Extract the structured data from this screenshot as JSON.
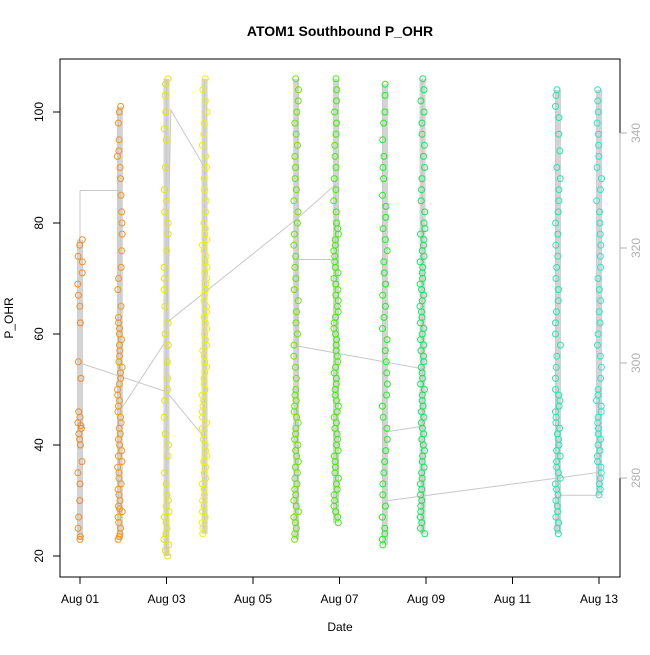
{
  "chart_data": {
    "type": "scatter",
    "title": "ATOM1 Southbound P_OHR",
    "xlabel": "Date",
    "ylabel": "P_OHR",
    "x_ticks": [
      "Aug 01",
      "Aug 03",
      "Aug 05",
      "Aug 07",
      "Aug 09",
      "Aug 11",
      "Aug 13"
    ],
    "xlim": [
      "Aug 01",
      "Aug 13"
    ],
    "ylim": [
      20,
      110
    ],
    "y_ticks": [
      20,
      40,
      60,
      80,
      100
    ],
    "secondary_y_ticks": [
      280,
      300,
      320,
      340
    ],
    "secondary_ylim": [
      263,
      353
    ],
    "grid": false,
    "series": [
      {
        "date": "Aug 01",
        "color": "#f08c28",
        "p_ohr_min": 23,
        "p_ohr_max": 77,
        "points": [
          23,
          23.5,
          25,
          27,
          30,
          33,
          35,
          37,
          40,
          41,
          42,
          43,
          43.5,
          44,
          45,
          46,
          52,
          55,
          62,
          65,
          67,
          69,
          71,
          73,
          74,
          76,
          77
        ]
      },
      {
        "date": "Aug 01 pm",
        "color": "#f0961e",
        "p_ohr_min": 23,
        "p_ohr_max": 101,
        "points": [
          23,
          23.5,
          24,
          25,
          26,
          27,
          28,
          28.5,
          29,
          30,
          31,
          32,
          33,
          34,
          35,
          36,
          37,
          38,
          39,
          40,
          41,
          42,
          43,
          44,
          45,
          46,
          47,
          48,
          49,
          50,
          51,
          52,
          53,
          54,
          55,
          56,
          57,
          58,
          59,
          60,
          61,
          62,
          63,
          65,
          68,
          70,
          72,
          75,
          78,
          80,
          82,
          85,
          88,
          90,
          92,
          93,
          95,
          98,
          100,
          101
        ]
      },
      {
        "date": "Aug 03",
        "color": "#e6e600",
        "p_ohr_min": 20,
        "p_ohr_max": 106,
        "points": [
          20,
          21,
          22,
          23,
          24,
          25,
          26,
          27,
          28,
          29,
          30,
          31,
          33,
          35,
          38,
          40,
          42,
          45,
          48,
          50,
          52,
          55,
          58,
          60,
          62,
          65,
          68,
          70,
          72,
          75,
          78,
          80,
          82,
          84,
          86,
          90,
          95,
          97,
          100,
          103,
          105,
          106
        ]
      },
      {
        "date": "Aug 03 pm",
        "color": "#f0f000",
        "p_ohr_min": 24,
        "p_ohr_max": 106,
        "points": [
          24,
          25,
          26,
          27,
          28,
          29,
          30,
          31,
          32,
          33,
          34,
          35,
          36,
          37,
          38,
          39,
          40,
          41,
          42,
          43,
          44,
          45,
          46,
          47,
          48,
          49,
          50,
          51,
          52,
          53,
          54,
          55,
          56,
          57,
          58,
          59,
          60,
          61,
          62,
          63,
          64,
          65,
          66,
          67,
          68,
          69,
          70,
          71,
          72,
          73,
          74,
          75,
          76,
          77,
          78,
          79,
          80,
          82,
          84,
          86,
          88,
          90,
          92,
          94,
          96,
          98,
          100,
          102,
          104,
          106
        ]
      },
      {
        "date": "Aug 06",
        "color": "#66e600",
        "p_ohr_min": 23,
        "p_ohr_max": 106,
        "points": [
          23,
          24,
          25,
          26,
          27,
          28,
          29,
          30,
          31,
          32,
          33,
          34,
          35,
          36,
          37,
          38,
          39,
          40,
          41,
          42,
          43,
          44,
          45,
          46,
          47,
          48,
          49,
          50,
          52,
          54,
          56,
          58,
          60,
          62,
          64,
          66,
          68,
          70,
          72,
          74,
          76,
          78,
          80,
          82,
          84,
          86,
          88,
          90,
          92,
          94,
          96,
          98,
          100,
          102,
          104,
          106
        ]
      },
      {
        "date": "Aug 06 pm",
        "color": "#3cf000",
        "p_ohr_min": 26,
        "p_ohr_max": 106,
        "points": [
          26,
          27,
          28,
          29,
          30,
          31,
          32,
          33,
          34,
          35,
          36,
          37,
          38,
          39,
          40,
          41,
          42,
          43,
          44,
          45,
          46,
          47,
          48,
          49,
          50,
          51,
          52,
          53,
          54,
          55,
          56,
          57,
          58,
          59,
          60,
          61,
          62,
          63,
          64,
          65,
          66,
          67,
          68,
          69,
          70,
          71,
          72,
          73,
          74,
          75,
          76,
          77,
          78,
          79,
          80,
          82,
          84,
          86,
          88,
          90,
          92,
          94,
          96,
          98,
          100,
          102,
          104,
          106
        ]
      },
      {
        "date": "Aug 08",
        "color": "#1ef01e",
        "p_ohr_min": 22,
        "p_ohr_max": 105,
        "points": [
          22,
          23,
          24,
          25,
          27,
          29,
          31,
          33,
          35,
          37,
          39,
          41,
          43,
          45,
          47,
          49,
          51,
          53,
          55,
          57,
          59,
          61,
          63,
          65,
          67,
          69,
          71,
          73,
          75,
          77,
          79,
          81,
          83,
          85,
          88,
          90,
          92,
          95,
          98,
          100,
          103,
          105
        ]
      },
      {
        "date": "Aug 08 pm",
        "color": "#14e65a",
        "p_ohr_min": 24,
        "p_ohr_max": 106,
        "points": [
          24,
          25,
          26,
          27,
          28,
          29,
          30,
          31,
          32,
          33,
          34,
          35,
          36,
          37,
          38,
          39,
          40,
          41,
          42,
          43,
          44,
          45,
          46,
          47,
          48,
          49,
          50,
          51,
          52,
          53,
          54,
          55,
          56,
          57,
          58,
          59,
          60,
          61,
          62,
          63,
          64,
          65,
          66,
          67,
          68,
          69,
          70,
          71,
          72,
          73,
          74,
          75,
          76,
          77,
          78,
          79,
          80,
          82,
          84,
          86,
          88,
          90,
          92,
          94,
          96,
          98,
          100,
          102,
          104,
          106
        ]
      },
      {
        "date": "Aug 12",
        "color": "#1ee6b4",
        "p_ohr_min": 24,
        "p_ohr_max": 104,
        "points": [
          24,
          25,
          26,
          27,
          28,
          29,
          30,
          31,
          32,
          33,
          34,
          35,
          36,
          37,
          38,
          39,
          40,
          41,
          42,
          43,
          44,
          45,
          46,
          47,
          48,
          49,
          50,
          52,
          54,
          56,
          58,
          60,
          62,
          64,
          66,
          68,
          70,
          72,
          74,
          76,
          78,
          80,
          82,
          84,
          86,
          88,
          90,
          93,
          96,
          99,
          101,
          103,
          104
        ]
      },
      {
        "date": "Aug 13",
        "color": "#28e6c8",
        "p_ohr_min": 31,
        "p_ohr_max": 104,
        "points": [
          31,
          32,
          33,
          34,
          35,
          36,
          37,
          38,
          39,
          40,
          41,
          42,
          43,
          44,
          45,
          46,
          47,
          48,
          49,
          50,
          52,
          54,
          56,
          58,
          60,
          62,
          64,
          66,
          68,
          70,
          72,
          74,
          76,
          78,
          80,
          82,
          84,
          86,
          88,
          90,
          92,
          94,
          96,
          98,
          100,
          102,
          104
        ]
      }
    ]
  }
}
